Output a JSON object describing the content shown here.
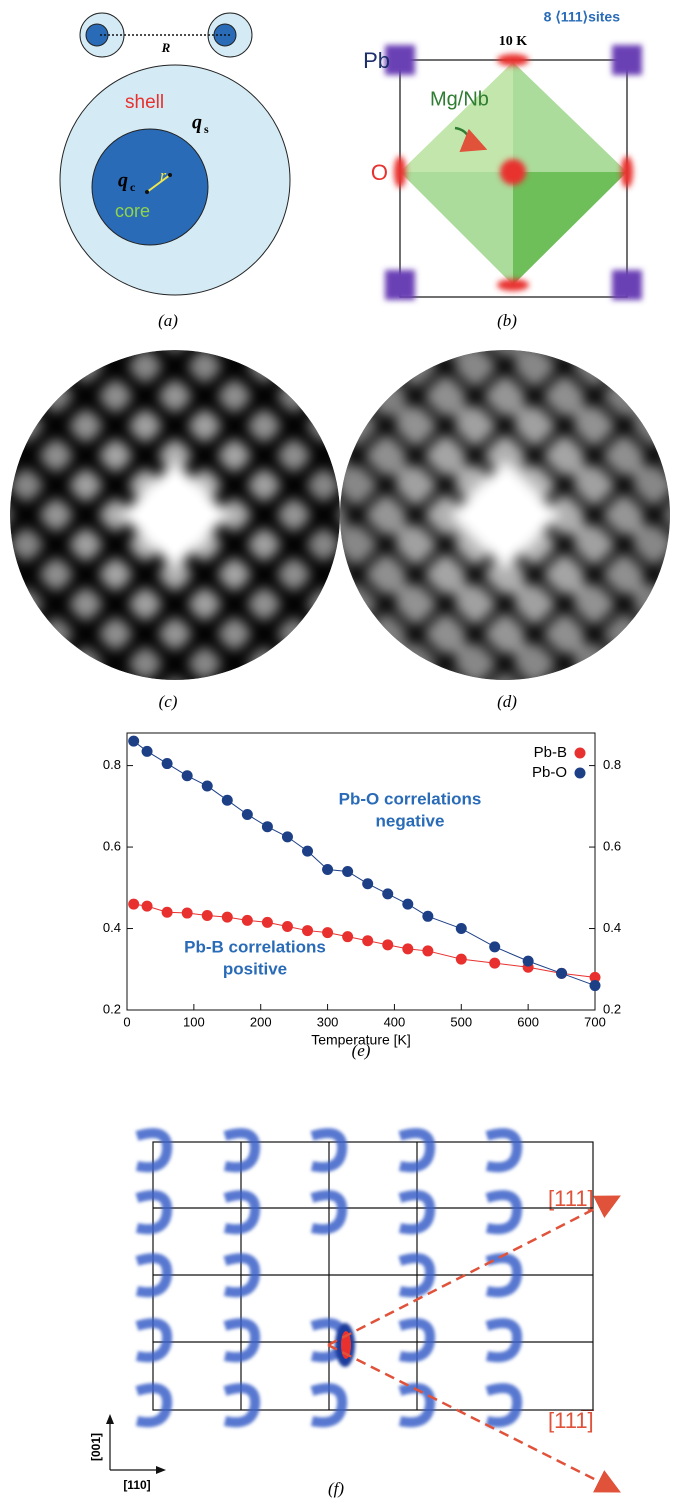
{
  "panels": {
    "a": {
      "label": "(a)",
      "R": "R",
      "shell": "shell",
      "qs": "q",
      "qs_sub": "s",
      "qc": "q",
      "qc_sub": "c",
      "r": "r",
      "core": "core"
    },
    "b": {
      "label": "(b)",
      "sites": "8 ⟨111⟩sites",
      "temp": "10 K",
      "pb": "Pb",
      "mgnb": "Mg/Nb",
      "o": "O"
    },
    "c": {
      "label": "(c)"
    },
    "d": {
      "label": "(d)"
    },
    "f": {
      "label": "(f)",
      "dir1": "[111]",
      "dir2": "[111̅]",
      "ax_v": "[001]",
      "ax_h": "[110]"
    }
  },
  "chart_data": {
    "type": "line",
    "label": "(e)",
    "xlabel": "Temperature [K]",
    "x": [
      10,
      30,
      60,
      90,
      120,
      150,
      180,
      210,
      240,
      270,
      300,
      330,
      360,
      390,
      420,
      450,
      500,
      550,
      600,
      650,
      700
    ],
    "series": [
      {
        "name": "Pb-B",
        "color": "#e8312f",
        "values": [
          0.46,
          0.455,
          0.44,
          0.438,
          0.432,
          0.428,
          0.42,
          0.415,
          0.405,
          0.395,
          0.39,
          0.38,
          0.37,
          0.36,
          0.35,
          0.345,
          0.325,
          0.315,
          0.305,
          0.29,
          0.28
        ]
      },
      {
        "name": "Pb-O",
        "color": "#1d3f86",
        "values": [
          0.86,
          0.835,
          0.805,
          0.775,
          0.75,
          0.715,
          0.68,
          0.65,
          0.625,
          0.59,
          0.545,
          0.54,
          0.51,
          0.485,
          0.46,
          0.43,
          0.4,
          0.355,
          0.32,
          0.29,
          0.26
        ]
      }
    ],
    "annotations": [
      [
        "Pb-O correlations",
        "negative"
      ],
      [
        "Pb-B correlations",
        "positive"
      ]
    ],
    "xlim": [
      0,
      700
    ],
    "xticks": [
      0,
      100,
      200,
      300,
      400,
      500,
      600,
      700
    ],
    "ylim": [
      0.2,
      0.88
    ],
    "yticks": [
      0.2,
      0.4,
      0.6,
      0.8
    ],
    "legend": "upper right"
  }
}
